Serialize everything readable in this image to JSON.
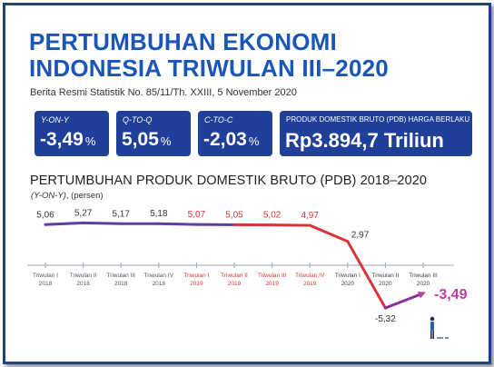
{
  "header": {
    "title_line1": "PERTUMBUHAN EKONOMI",
    "title_line2": "INDONESIA TRIWULAN III–2020",
    "subtitle": "Berita Resmi Statistik No. 85/11/Th. XXIII, 5 November 2020"
  },
  "indicators": [
    {
      "label": "Y-ON-Y",
      "value": "-3,49",
      "unit": "%"
    },
    {
      "label": "Q-TO-Q",
      "value": "5,05",
      "unit": "%"
    },
    {
      "label": "C-TO-C",
      "value": "-2,03",
      "unit": "%"
    },
    {
      "label": "PRODUK DOMESTIK BRUTO (PDB) HARGA BERLAKU",
      "value": "Rp3.894,7 Triliun",
      "unit": ""
    }
  ],
  "chart_title": "PERTUMBUHAN PRODUK DOMESTIK BRUTO (PDB) 2018–2020",
  "chart_subtitle_italic": "(Y-ON-Y)",
  "chart_subtitle_rest": ", (persen)",
  "chart_data": {
    "type": "line",
    "title": "PERTUMBUHAN PRODUK DOMESTIK BRUTO (PDB) 2018–2020",
    "ylabel": "(Y-ON-Y), (persen)",
    "categories": [
      "Triwulan I 2018",
      "Triwulan II 2018",
      "Triwulan III 2018",
      "Triwulan IV 2018",
      "Triwulan I 2019",
      "Triwulan II 2019",
      "Triwulan III 2019",
      "Triwulan IV 2019",
      "Triwulan I 2020",
      "Triwulan II 2020",
      "Triwulan III 2020"
    ],
    "tick_lines": [
      [
        "Triwulan I",
        "2018"
      ],
      [
        "Triwulan II",
        "2018"
      ],
      [
        "Triwulan III",
        "2018"
      ],
      [
        "Triwulan IV",
        "2018"
      ],
      [
        "Triwulan I",
        "2019"
      ],
      [
        "Triwulan II",
        "2019"
      ],
      [
        "Triwulan III",
        "2019"
      ],
      [
        "Triwulan IV",
        "2019"
      ],
      [
        "Triwulan I",
        "2020"
      ],
      [
        "Triwulan II",
        "2020"
      ],
      [
        "Triwulan III",
        "2020"
      ]
    ],
    "values": [
      5.06,
      5.27,
      5.17,
      5.18,
      5.07,
      5.05,
      5.02,
      4.97,
      2.97,
      -5.32,
      -3.49
    ],
    "data_labels": [
      "5,06",
      "5,27",
      "5,17",
      "5,18",
      "5,07",
      "5,05",
      "5,02",
      "4,97",
      "2,97",
      "-5,32",
      "-3,49"
    ],
    "ylim": [
      -6,
      6
    ],
    "grid": false,
    "colors": {
      "2018": "#5a3fa8",
      "2019": "#d9343a",
      "2020_q1": "#d9343a",
      "2020_decline": "#8a2d9a",
      "2020_recovery": "#c23aa8",
      "axis": "#9aa6b8",
      "tick_2018": "#555555",
      "tick_2019": "#d9343a",
      "tick_2020": "#444444"
    }
  },
  "colors": {
    "title": "#1a55b8",
    "box_bg": "#1f3f99",
    "frame": "#1f3f8f"
  }
}
